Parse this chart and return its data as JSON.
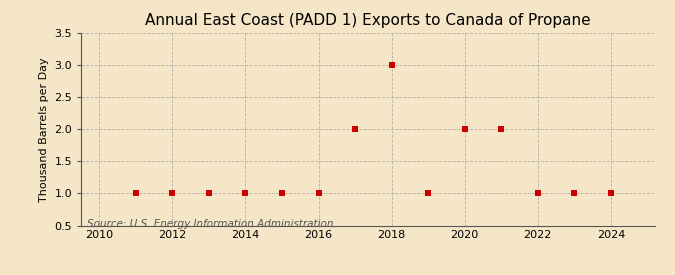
{
  "title": "Annual East Coast (PADD 1) Exports to Canada of Propane",
  "ylabel": "Thousand Barrels per Day",
  "source": "Source: U.S. Energy Information Administration",
  "background_color": "#f5e6c8",
  "plot_bg_color": "#f5e6c8",
  "x_values": [
    2011,
    2012,
    2013,
    2014,
    2015,
    2016,
    2017,
    2018,
    2019,
    2020,
    2021,
    2022,
    2023,
    2024
  ],
  "y_values": [
    1.0,
    1.0,
    1.0,
    1.0,
    1.0,
    1.0,
    2.0,
    3.0,
    1.0,
    2.0,
    2.0,
    1.0,
    1.0,
    1.0
  ],
  "marker_color": "#cc0000",
  "marker_size": 4,
  "xlim": [
    2009.5,
    2025.2
  ],
  "ylim": [
    0.5,
    3.5
  ],
  "yticks": [
    0.5,
    1.0,
    1.5,
    2.0,
    2.5,
    3.0,
    3.5
  ],
  "ytick_labels": [
    "0.5",
    "1.0",
    "1.5",
    "2.0",
    "2.5",
    "3.0",
    "3.5"
  ],
  "xticks": [
    2010,
    2012,
    2014,
    2016,
    2018,
    2020,
    2022,
    2024
  ],
  "grid_color": "#999999",
  "title_fontsize": 11,
  "label_fontsize": 8,
  "tick_fontsize": 8,
  "source_fontsize": 7.5
}
